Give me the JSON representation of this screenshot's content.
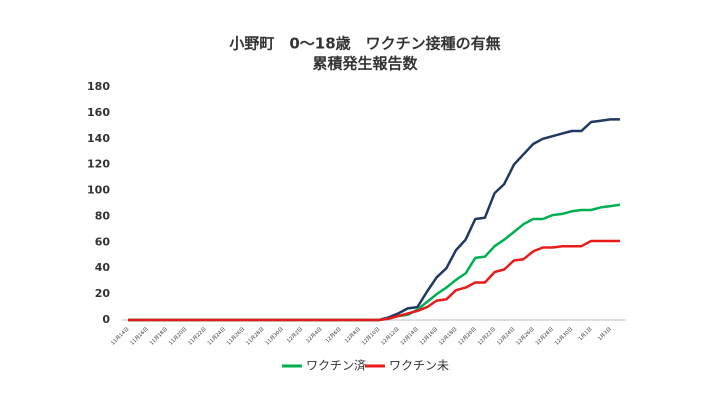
{
  "chart_data": {
    "type": "line",
    "title": "小野町　0～18歳　ワクチン接種の有無",
    "subtitle": "累積発生報告数",
    "categories": [
      "11月14日",
      null,
      "11月16日",
      null,
      "11月18日",
      null,
      "11月20日",
      null,
      "11月22日",
      null,
      "11月24日",
      null,
      "11月26日",
      null,
      "11月28日",
      null,
      "11月30日",
      null,
      "12月2日",
      null,
      "12月4日",
      null,
      "12月6日",
      null,
      "12月8日",
      null,
      "12月10日",
      null,
      "12月12日",
      null,
      "12月14日",
      null,
      "12月16日",
      null,
      "12月18日",
      null,
      "12月20日",
      null,
      "12月22日",
      null,
      "12月24日",
      null,
      "12月26日",
      null,
      "12月28日",
      null,
      "12月30日",
      null,
      "1月1日",
      null,
      "1月3日",
      null
    ],
    "series": [
      {
        "color": "#1f3864",
        "values": [
          0,
          0,
          0,
          0,
          0,
          0,
          0,
          0,
          0,
          0,
          0,
          0,
          0,
          0,
          0,
          0,
          0,
          0,
          0,
          0,
          0,
          0,
          0,
          0,
          0,
          0,
          0,
          2,
          5,
          9,
          10,
          22,
          33,
          40,
          54,
          62,
          78,
          79,
          98,
          105,
          120,
          128,
          136,
          140,
          142,
          144,
          146,
          146,
          153,
          154,
          155,
          155
        ]
      },
      {
        "name": "ワクチン済",
        "color": "#00b050",
        "values": [
          0,
          0,
          0,
          0,
          0,
          0,
          0,
          0,
          0,
          0,
          0,
          0,
          0,
          0,
          0,
          0,
          0,
          0,
          0,
          0,
          0,
          0,
          0,
          0,
          0,
          0,
          0,
          1,
          3,
          4,
          8,
          14,
          20,
          25,
          31,
          36,
          48,
          49,
          57,
          62,
          68,
          74,
          78,
          78,
          81,
          82,
          84,
          85,
          85,
          87,
          88,
          89
        ]
      },
      {
        "name": "ワクチン未",
        "color": "#e81a1a",
        "values": [
          0,
          0,
          0,
          0,
          0,
          0,
          0,
          0,
          0,
          0,
          0,
          0,
          0,
          0,
          0,
          0,
          0,
          0,
          0,
          0,
          0,
          0,
          0,
          0,
          0,
          0,
          0,
          1,
          3,
          5,
          7,
          10,
          15,
          16,
          23,
          25,
          29,
          29,
          37,
          39,
          46,
          47,
          53,
          56,
          56,
          57,
          57,
          57,
          61,
          61,
          61,
          61
        ]
      }
    ],
    "ylim": [
      0,
      180
    ],
    "yticks": [
      0,
      20,
      40,
      60,
      80,
      100,
      120,
      140,
      160,
      180
    ],
    "grid": false
  }
}
